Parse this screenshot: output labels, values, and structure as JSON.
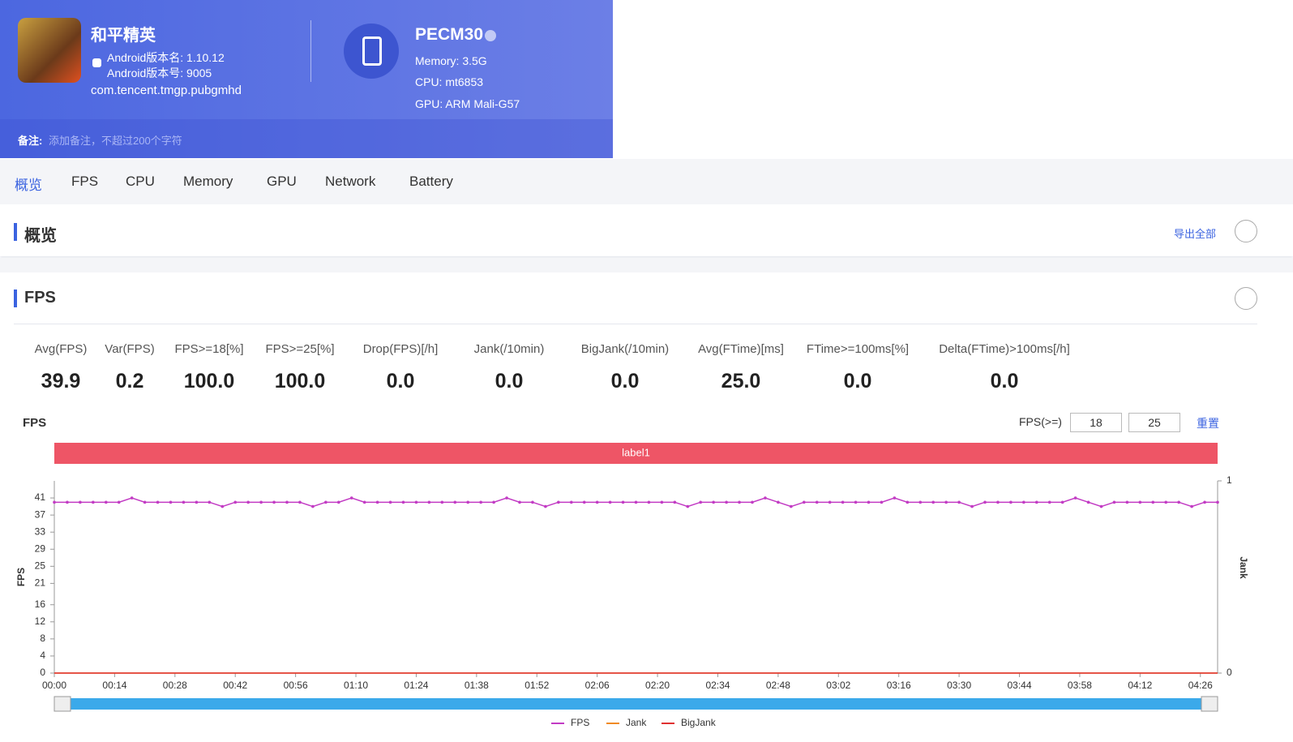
{
  "header": {
    "app_name": "和平精英",
    "android_version_name": "Android版本名: 1.10.12",
    "android_version_code": "Android版本号: 9005",
    "package": "com.tencent.tmgp.pubgmhd",
    "device": "PECM30",
    "memory": "Memory: 3.5G",
    "cpu": "CPU: mt6853",
    "gpu": "GPU: ARM Mali-G57",
    "note_label": "备注:",
    "note_placeholder": "添加备注，不超过200个字符"
  },
  "tabs": [
    "概览",
    "FPS",
    "CPU",
    "Memory",
    "GPU",
    "Network",
    "Battery"
  ],
  "overview": {
    "title": "概览",
    "export": "导出全部"
  },
  "fps_section": {
    "title": "FPS",
    "stats": [
      {
        "label": "Avg(FPS)",
        "value": "39.9"
      },
      {
        "label": "Var(FPS)",
        "value": "0.2"
      },
      {
        "label": "FPS>=18[%]",
        "value": "100.0"
      },
      {
        "label": "FPS>=25[%]",
        "value": "100.0"
      },
      {
        "label": "Drop(FPS)[/h]",
        "value": "0.0"
      },
      {
        "label": "Jank(/10min)",
        "value": "0.0"
      },
      {
        "label": "BigJank(/10min)",
        "value": "0.0"
      },
      {
        "label": "Avg(FTime)[ms]",
        "value": "25.0"
      },
      {
        "label": "FTime>=100ms[%]",
        "value": "0.0"
      },
      {
        "label": "Delta(FTime)>100ms[/h]",
        "value": "0.0"
      }
    ]
  },
  "chart_data": {
    "type": "line",
    "title": "FPS",
    "threshold_label": "FPS(>=)",
    "thresholds": [
      18,
      25
    ],
    "reset": "重置",
    "band_label": "label1",
    "band_color": "#ee5566",
    "y_label": "FPS",
    "y2_label": "Jank",
    "x": [
      0,
      3,
      6,
      9,
      12,
      15,
      18,
      21,
      24,
      27,
      30,
      33,
      36,
      39,
      42,
      45,
      48,
      51,
      54,
      57,
      60,
      63,
      66,
      69,
      72,
      75,
      78,
      81,
      84,
      87,
      90,
      93,
      96,
      99,
      102,
      105,
      108,
      111,
      114,
      117,
      120,
      123,
      126,
      129,
      132,
      135,
      138,
      141,
      144,
      147,
      150,
      153,
      156,
      159,
      162,
      165,
      168,
      171,
      174,
      177,
      180,
      183,
      186,
      189,
      192,
      195,
      198,
      201,
      204,
      207,
      210,
      213,
      216,
      219,
      222,
      225,
      228,
      231,
      234,
      237,
      240,
      243,
      246,
      249,
      252,
      255,
      258,
      261,
      264,
      267,
      270
    ],
    "xlim": [
      0,
      270
    ],
    "xticks": [
      {
        "value": 0,
        "label": "00:00"
      },
      {
        "value": 14,
        "label": "00:14"
      },
      {
        "value": 28,
        "label": "00:28"
      },
      {
        "value": 42,
        "label": "00:42"
      },
      {
        "value": 56,
        "label": "00:56"
      },
      {
        "value": 70,
        "label": "01:10"
      },
      {
        "value": 84,
        "label": "01:24"
      },
      {
        "value": 98,
        "label": "01:38"
      },
      {
        "value": 112,
        "label": "01:52"
      },
      {
        "value": 126,
        "label": "02:06"
      },
      {
        "value": 140,
        "label": "02:20"
      },
      {
        "value": 154,
        "label": "02:34"
      },
      {
        "value": 168,
        "label": "02:48"
      },
      {
        "value": 182,
        "label": "03:02"
      },
      {
        "value": 196,
        "label": "03:16"
      },
      {
        "value": 210,
        "label": "03:30"
      },
      {
        "value": 224,
        "label": "03:44"
      },
      {
        "value": 238,
        "label": "03:58"
      },
      {
        "value": 252,
        "label": "04:12"
      },
      {
        "value": 266,
        "label": "04:26"
      }
    ],
    "ylim": [
      0,
      45
    ],
    "yticks": [
      0,
      4,
      8,
      12,
      16,
      21,
      25,
      29,
      33,
      37,
      41
    ],
    "y2lim": [
      0,
      1
    ],
    "y2ticks": [
      0,
      1
    ],
    "series": [
      {
        "name": "FPS",
        "color": "#c23bc4",
        "values": [
          40,
          40,
          40,
          40,
          40,
          40,
          41,
          40,
          40,
          40,
          40,
          40,
          40,
          39,
          40,
          40,
          40,
          40,
          40,
          40,
          39,
          40,
          40,
          41,
          40,
          40,
          40,
          40,
          40,
          40,
          40,
          40,
          40,
          40,
          40,
          41,
          40,
          40,
          39,
          40,
          40,
          40,
          40,
          40,
          40,
          40,
          40,
          40,
          40,
          39,
          40,
          40,
          40,
          40,
          40,
          41,
          40,
          39,
          40,
          40,
          40,
          40,
          40,
          40,
          40,
          41,
          40,
          40,
          40,
          40,
          40,
          39,
          40,
          40,
          40,
          40,
          40,
          40,
          40,
          41,
          40,
          39,
          40,
          40,
          40,
          40,
          40,
          40,
          39,
          40,
          40
        ]
      },
      {
        "name": "Jank",
        "color": "#f08a24",
        "axis": "y2",
        "values": [
          0,
          0,
          0,
          0,
          0,
          0,
          0,
          0,
          0,
          0,
          0,
          0,
          0,
          0,
          0,
          0,
          0,
          0,
          0,
          0,
          0,
          0,
          0,
          0,
          0,
          0,
          0,
          0,
          0,
          0,
          0,
          0,
          0,
          0,
          0,
          0,
          0,
          0,
          0,
          0,
          0,
          0,
          0,
          0,
          0,
          0,
          0,
          0,
          0,
          0,
          0,
          0,
          0,
          0,
          0,
          0,
          0,
          0,
          0,
          0,
          0,
          0,
          0,
          0,
          0,
          0,
          0,
          0,
          0,
          0,
          0,
          0,
          0,
          0,
          0,
          0,
          0,
          0,
          0,
          0,
          0,
          0,
          0,
          0,
          0,
          0,
          0,
          0,
          0,
          0,
          0
        ]
      },
      {
        "name": "BigJank",
        "color": "#e03030",
        "axis": "y2",
        "values": [
          0,
          0,
          0,
          0,
          0,
          0,
          0,
          0,
          0,
          0,
          0,
          0,
          0,
          0,
          0,
          0,
          0,
          0,
          0,
          0,
          0,
          0,
          0,
          0,
          0,
          0,
          0,
          0,
          0,
          0,
          0,
          0,
          0,
          0,
          0,
          0,
          0,
          0,
          0,
          0,
          0,
          0,
          0,
          0,
          0,
          0,
          0,
          0,
          0,
          0,
          0,
          0,
          0,
          0,
          0,
          0,
          0,
          0,
          0,
          0,
          0,
          0,
          0,
          0,
          0,
          0,
          0,
          0,
          0,
          0,
          0,
          0,
          0,
          0,
          0,
          0,
          0,
          0,
          0,
          0,
          0,
          0,
          0,
          0,
          0,
          0,
          0,
          0,
          0,
          0,
          0
        ]
      }
    ]
  }
}
